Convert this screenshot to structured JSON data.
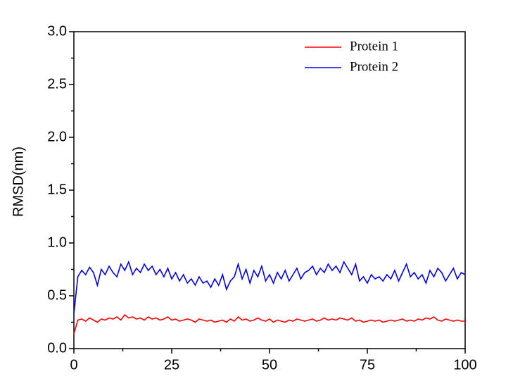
{
  "chart_data": {
    "type": "line",
    "ylabel": "RMSD(nm)",
    "xlim": [
      0,
      100
    ],
    "xticks": [
      0,
      25,
      50,
      75,
      100
    ],
    "ylim": [
      0,
      3
    ],
    "yticks": [
      {
        "value": 0,
        "label": "0.0"
      },
      0.5,
      {
        "value": 1,
        "label": "1.0"
      },
      1.5,
      {
        "value": 2,
        "label": "2.0"
      },
      2.5,
      {
        "value": 3,
        "label": "3.0"
      }
    ],
    "legend": "upper right",
    "x": [
      0,
      1,
      2,
      3,
      4,
      5,
      6,
      7,
      8,
      9,
      10,
      11,
      12,
      13,
      14,
      15,
      16,
      17,
      18,
      19,
      20,
      21,
      22,
      23,
      24,
      25,
      26,
      27,
      28,
      29,
      30,
      31,
      32,
      33,
      34,
      35,
      36,
      37,
      38,
      39,
      40,
      41,
      42,
      43,
      44,
      45,
      46,
      47,
      48,
      49,
      50,
      51,
      52,
      53,
      54,
      55,
      56,
      57,
      58,
      59,
      60,
      61,
      62,
      63,
      64,
      65,
      66,
      67,
      68,
      69,
      70,
      71,
      72,
      73,
      74,
      75,
      76,
      77,
      78,
      79,
      80,
      81,
      82,
      83,
      84,
      85,
      86,
      87,
      88,
      89,
      90,
      91,
      92,
      93,
      94,
      95,
      96,
      97,
      98,
      99,
      100
    ],
    "series": [
      {
        "name": "Protein 1",
        "color": "#ff0000",
        "values": [
          0.14,
          0.27,
          0.28,
          0.26,
          0.29,
          0.27,
          0.25,
          0.28,
          0.27,
          0.29,
          0.28,
          0.3,
          0.27,
          0.32,
          0.29,
          0.3,
          0.28,
          0.29,
          0.27,
          0.3,
          0.28,
          0.29,
          0.27,
          0.28,
          0.3,
          0.27,
          0.28,
          0.26,
          0.27,
          0.28,
          0.27,
          0.25,
          0.28,
          0.27,
          0.26,
          0.27,
          0.25,
          0.26,
          0.27,
          0.25,
          0.28,
          0.26,
          0.3,
          0.27,
          0.28,
          0.26,
          0.27,
          0.29,
          0.27,
          0.26,
          0.28,
          0.25,
          0.27,
          0.26,
          0.25,
          0.27,
          0.26,
          0.28,
          0.27,
          0.26,
          0.27,
          0.28,
          0.26,
          0.27,
          0.29,
          0.27,
          0.28,
          0.27,
          0.29,
          0.28,
          0.27,
          0.29,
          0.26,
          0.27,
          0.25,
          0.26,
          0.27,
          0.26,
          0.27,
          0.25,
          0.26,
          0.27,
          0.26,
          0.27,
          0.28,
          0.26,
          0.27,
          0.26,
          0.28,
          0.27,
          0.29,
          0.28,
          0.3,
          0.27,
          0.26,
          0.28,
          0.27,
          0.26,
          0.27,
          0.26,
          0.26
        ]
      },
      {
        "name": "Protein 2",
        "color": "#0000ee",
        "values": [
          0.33,
          0.68,
          0.74,
          0.7,
          0.77,
          0.72,
          0.6,
          0.75,
          0.7,
          0.78,
          0.72,
          0.68,
          0.8,
          0.74,
          0.82,
          0.7,
          0.76,
          0.72,
          0.8,
          0.74,
          0.78,
          0.7,
          0.75,
          0.68,
          0.76,
          0.66,
          0.72,
          0.64,
          0.7,
          0.62,
          0.66,
          0.6,
          0.68,
          0.62,
          0.64,
          0.58,
          0.66,
          0.6,
          0.7,
          0.56,
          0.64,
          0.68,
          0.8,
          0.66,
          0.75,
          0.62,
          0.74,
          0.68,
          0.78,
          0.64,
          0.7,
          0.62,
          0.72,
          0.66,
          0.74,
          0.64,
          0.7,
          0.76,
          0.66,
          0.72,
          0.74,
          0.78,
          0.7,
          0.76,
          0.72,
          0.8,
          0.74,
          0.78,
          0.72,
          0.82,
          0.76,
          0.7,
          0.8,
          0.64,
          0.68,
          0.62,
          0.7,
          0.66,
          0.68,
          0.64,
          0.7,
          0.66,
          0.74,
          0.64,
          0.72,
          0.8,
          0.68,
          0.72,
          0.66,
          0.7,
          0.62,
          0.74,
          0.68,
          0.76,
          0.72,
          0.64,
          0.7,
          0.76,
          0.66,
          0.72,
          0.7
        ]
      }
    ]
  }
}
